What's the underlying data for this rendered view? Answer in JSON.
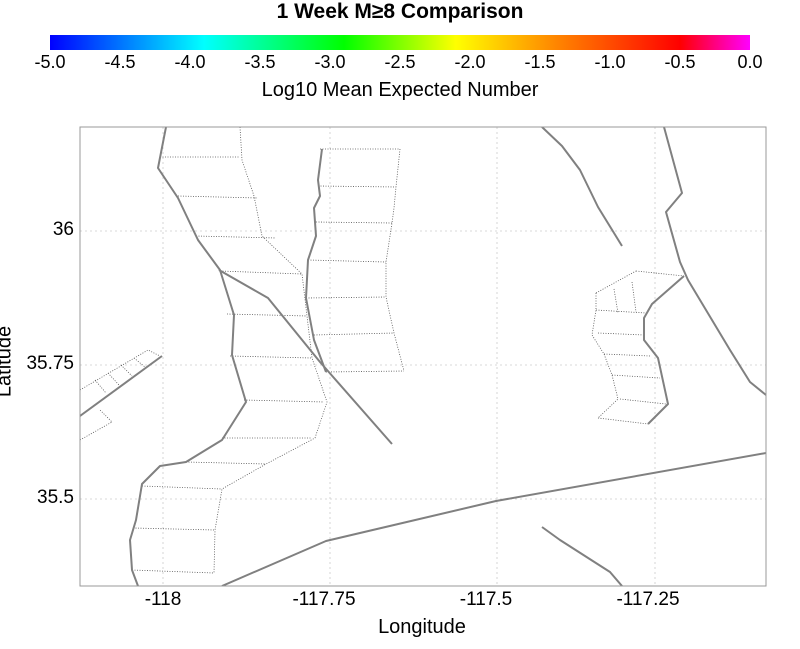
{
  "title": "1 Week M≥8 Comparison",
  "colorbar": {
    "label": "Log10 Mean Expected Number",
    "ticks": [
      "-5.0",
      "-4.5",
      "-4.0",
      "-3.5",
      "-3.0",
      "-2.5",
      "-2.0",
      "-1.5",
      "-1.0",
      "-0.5",
      "0.0"
    ],
    "colors": [
      "#0000ff",
      "#00ffff",
      "#00ff00",
      "#ffff00",
      "#ff8800",
      "#ff0000",
      "#ff00ff"
    ]
  },
  "axes": {
    "xlabel": "Longitude",
    "ylabel": "Latitude",
    "xticks": [
      "-118",
      "-117.75",
      "-117.5",
      "-117.25"
    ],
    "yticks": [
      "36",
      "35.75",
      "35.5"
    ],
    "xlim": [
      -118.12,
      -117.1
    ],
    "ylim": [
      35.33,
      36.2
    ],
    "grid": true
  },
  "colors": {
    "fault_line": "#808080",
    "frame": "#999999",
    "grid": "#cccccc"
  }
}
